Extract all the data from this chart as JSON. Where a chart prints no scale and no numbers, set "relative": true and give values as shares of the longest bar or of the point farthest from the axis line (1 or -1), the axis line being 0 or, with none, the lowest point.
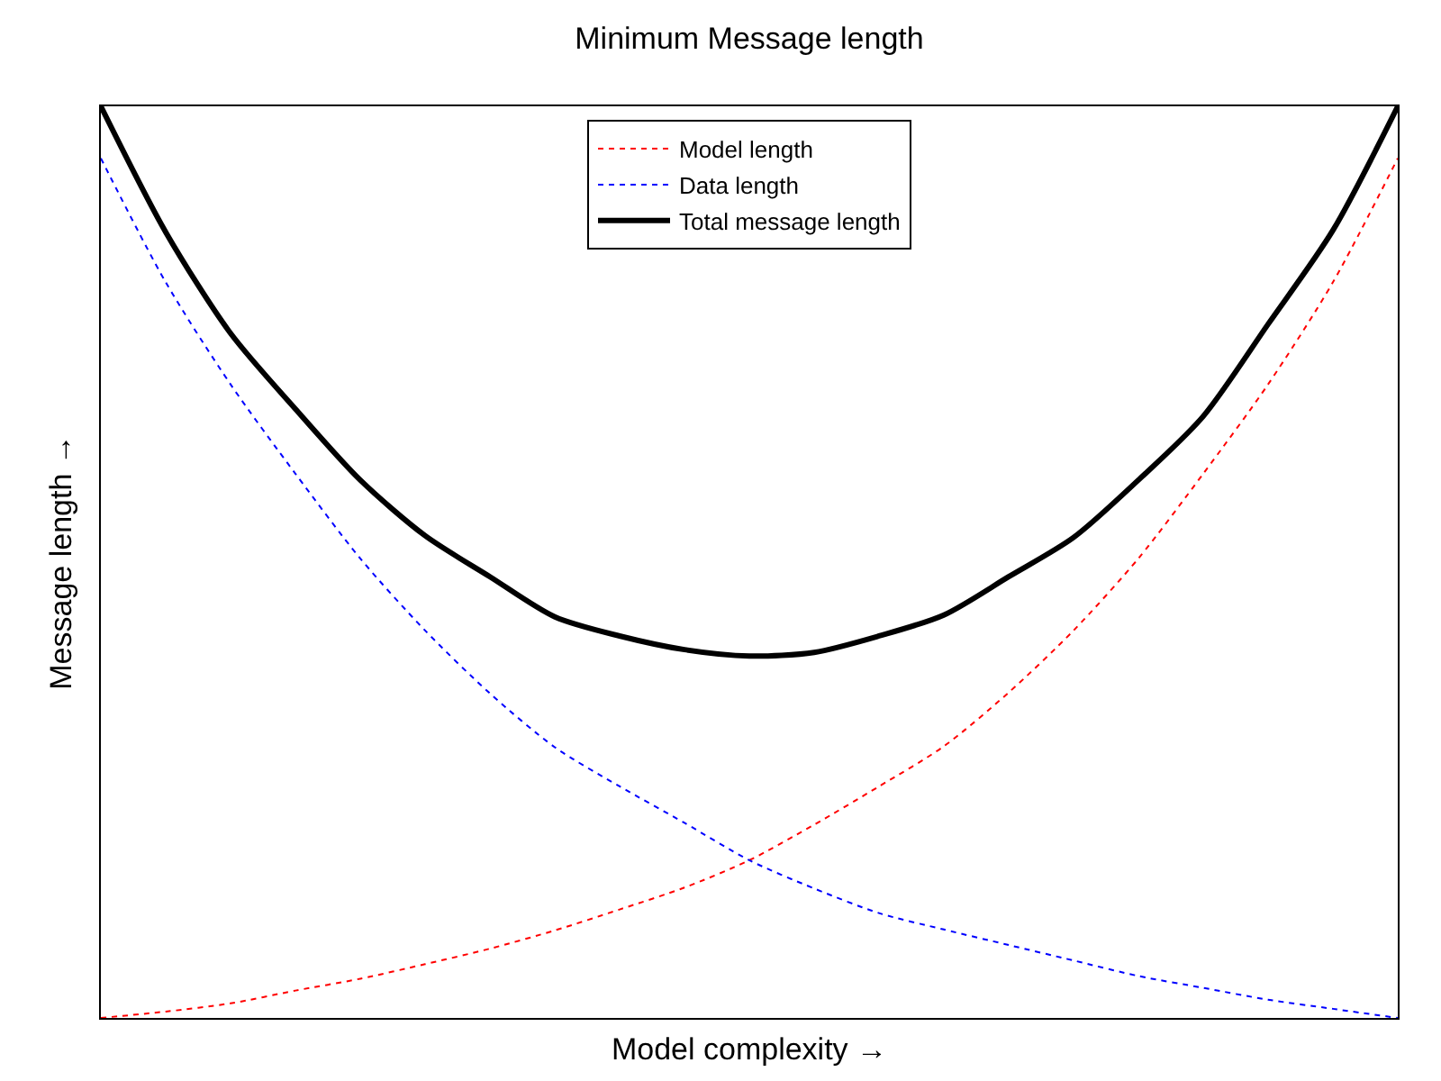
{
  "chart_data": {
    "type": "line",
    "title": "Minimum Message length",
    "xlabel": "Model complexity →",
    "ylabel": "Message length →",
    "relative": true,
    "legend": "top",
    "categories": [
      null,
      null,
      null,
      null,
      null,
      null,
      null,
      null,
      null,
      null,
      null,
      null,
      null,
      null,
      null,
      null,
      null,
      null,
      null,
      null,
      null
    ],
    "series": [
      {
        "name": "Model length",
        "color": "#ff0000",
        "line_style": "dotted",
        "values": [
          0,
          0.007,
          0.016,
          0.03,
          0.043,
          0.059,
          0.076,
          0.096,
          0.119,
          0.143,
          0.173,
          0.212,
          0.254,
          0.298,
          0.357,
          0.425,
          0.504,
          0.597,
          0.695,
          0.807,
          0.943
        ]
      },
      {
        "name": "Data length",
        "color": "#0000ff",
        "line_style": "dotted",
        "values": [
          0.943,
          0.807,
          0.695,
          0.597,
          0.504,
          0.425,
          0.356,
          0.297,
          0.254,
          0.214,
          0.173,
          0.142,
          0.115,
          0.097,
          0.08,
          0.063,
          0.046,
          0.033,
          0.02,
          0.01,
          0
        ]
      },
      {
        "name": "Total message length",
        "color": "#000000",
        "line_style": "solid",
        "values": [
          1,
          0.862,
          0.751,
          0.668,
          0.59,
          0.529,
          0.484,
          0.44,
          0.419,
          0.404,
          0.397,
          0.401,
          0.419,
          0.442,
          0.484,
          0.527,
          0.59,
          0.66,
          0.761,
          0.864,
          1
        ]
      }
    ]
  }
}
